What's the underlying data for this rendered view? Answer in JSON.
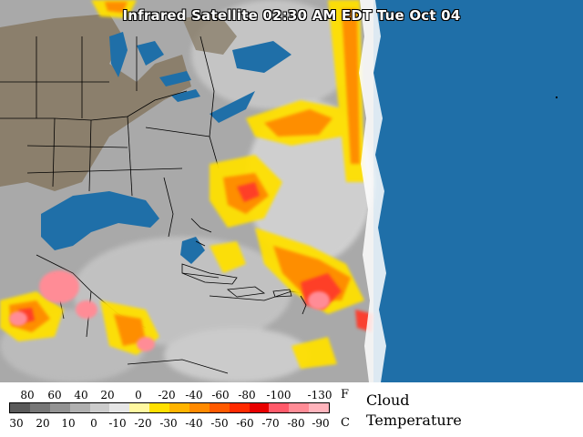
{
  "title": "Infrared Satellite 02:30 AM EDT Tue Oct 04",
  "legend": {
    "fahrenheit_ticks": [
      "80",
      "60",
      "40",
      "20",
      "0",
      "-20",
      "-40",
      "-60",
      "-80",
      "-100",
      "-130"
    ],
    "celsius_ticks": [
      "30",
      "20",
      "10",
      "0",
      "-10",
      "-20",
      "-30",
      "-40",
      "-50",
      "-60",
      "-70",
      "-80",
      "-90"
    ],
    "unit_f": "F",
    "unit_c": "C",
    "title_line1": "Cloud",
    "title_line2": "Temperature",
    "colors": [
      "#5a5a5a",
      "#777777",
      "#939393",
      "#b0b0b0",
      "#cccccc",
      "#e6e6e6",
      "#fff8a0",
      "#ffe000",
      "#ffb400",
      "#ff8a00",
      "#ff5a00",
      "#ff2a00",
      "#e80000",
      "#ff5a6a",
      "#ff8c96",
      "#ffb4bc"
    ]
  },
  "colors": {
    "ocean": "#1f6fa8",
    "land": "#8b7f6c",
    "cloud_gray": "#b8b8b8"
  }
}
